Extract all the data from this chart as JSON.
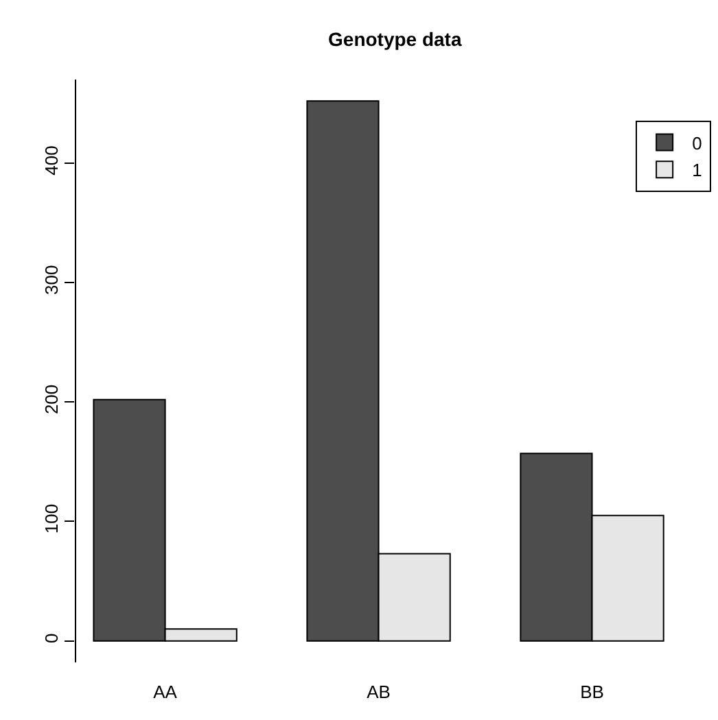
{
  "chart_data": {
    "type": "bar",
    "title": "Genotype data",
    "categories": [
      "AA",
      "AB",
      "BB"
    ],
    "series": [
      {
        "name": "0",
        "color": "#4d4d4d",
        "values": [
          202,
          452,
          157
        ]
      },
      {
        "name": "1",
        "color": "#e6e6e6",
        "values": [
          10,
          73,
          105
        ]
      }
    ],
    "ylim": [
      -18,
      470
    ],
    "yticks": [
      0,
      100,
      200,
      300,
      400
    ],
    "grid": false,
    "legend": "top right"
  }
}
